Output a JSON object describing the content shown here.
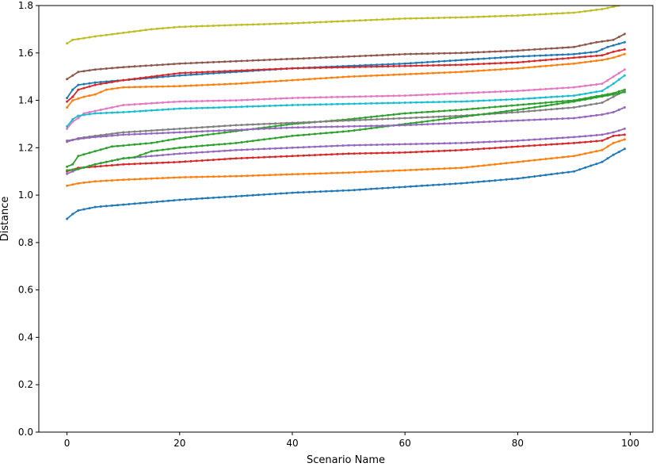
{
  "chart_data": {
    "type": "line",
    "title": "",
    "xlabel": "Scenario Name",
    "ylabel": "Distance",
    "xlim": [
      -5,
      104
    ],
    "ylim": [
      0.0,
      1.8
    ],
    "xticks": [
      0,
      20,
      40,
      60,
      80,
      100
    ],
    "xtick_labels": [
      "0",
      "20",
      "40",
      "60",
      "80",
      "100"
    ],
    "yticks": [
      0.0,
      0.2,
      0.4,
      0.6,
      0.8,
      1.0,
      1.2,
      1.4,
      1.6,
      1.8
    ],
    "ytick_labels": [
      "0.0",
      "0.2",
      "0.4",
      "0.6",
      "0.8",
      "1.0",
      "1.2",
      "1.4",
      "1.6",
      "1.8"
    ],
    "grid": false,
    "marker": "dot",
    "series": [
      {
        "color": "#1f77b4",
        "points": [
          [
            0,
            0.9
          ],
          [
            1,
            0.92
          ],
          [
            2,
            0.935
          ],
          [
            5,
            0.95
          ],
          [
            10,
            0.96
          ],
          [
            20,
            0.98
          ],
          [
            30,
            0.995
          ],
          [
            40,
            1.01
          ],
          [
            50,
            1.02
          ],
          [
            60,
            1.035
          ],
          [
            70,
            1.05
          ],
          [
            80,
            1.07
          ],
          [
            90,
            1.1
          ],
          [
            95,
            1.14
          ],
          [
            97,
            1.17
          ],
          [
            99,
            1.195
          ]
        ]
      },
      {
        "color": "#ff7f0e",
        "points": [
          [
            0,
            1.04
          ],
          [
            2,
            1.05
          ],
          [
            5,
            1.058
          ],
          [
            10,
            1.065
          ],
          [
            20,
            1.075
          ],
          [
            30,
            1.08
          ],
          [
            40,
            1.088
          ],
          [
            50,
            1.095
          ],
          [
            60,
            1.105
          ],
          [
            70,
            1.115
          ],
          [
            80,
            1.14
          ],
          [
            90,
            1.165
          ],
          [
            95,
            1.19
          ],
          [
            97,
            1.22
          ],
          [
            99,
            1.235
          ]
        ]
      },
      {
        "color": "#2ca02c",
        "points": [
          [
            0,
            1.12
          ],
          [
            1,
            1.13
          ],
          [
            2,
            1.165
          ],
          [
            5,
            1.185
          ],
          [
            8,
            1.205
          ],
          [
            15,
            1.22
          ],
          [
            20,
            1.24
          ],
          [
            30,
            1.27
          ],
          [
            40,
            1.3
          ],
          [
            50,
            1.32
          ],
          [
            60,
            1.345
          ],
          [
            70,
            1.36
          ],
          [
            80,
            1.38
          ],
          [
            90,
            1.4
          ],
          [
            97,
            1.43
          ],
          [
            99,
            1.445
          ]
        ]
      },
      {
        "color": "#d62728",
        "points": [
          [
            0,
            1.1
          ],
          [
            2,
            1.115
          ],
          [
            5,
            1.12
          ],
          [
            10,
            1.13
          ],
          [
            20,
            1.14
          ],
          [
            30,
            1.155
          ],
          [
            40,
            1.165
          ],
          [
            50,
            1.175
          ],
          [
            60,
            1.18
          ],
          [
            70,
            1.19
          ],
          [
            80,
            1.205
          ],
          [
            90,
            1.22
          ],
          [
            95,
            1.23
          ],
          [
            97,
            1.25
          ],
          [
            99,
            1.255
          ]
        ]
      },
      {
        "color": "#9467bd",
        "points": [
          [
            0,
            1.09
          ],
          [
            2,
            1.11
          ],
          [
            5,
            1.13
          ],
          [
            10,
            1.155
          ],
          [
            20,
            1.175
          ],
          [
            30,
            1.19
          ],
          [
            40,
            1.2
          ],
          [
            50,
            1.21
          ],
          [
            60,
            1.215
          ],
          [
            70,
            1.22
          ],
          [
            80,
            1.23
          ],
          [
            90,
            1.245
          ],
          [
            95,
            1.255
          ],
          [
            97,
            1.265
          ],
          [
            99,
            1.28
          ]
        ]
      },
      {
        "color": "#8c564b",
        "points": [
          [
            0,
            1.49
          ],
          [
            2,
            1.52
          ],
          [
            5,
            1.53
          ],
          [
            10,
            1.54
          ],
          [
            20,
            1.555
          ],
          [
            30,
            1.565
          ],
          [
            40,
            1.575
          ],
          [
            50,
            1.585
          ],
          [
            60,
            1.595
          ],
          [
            70,
            1.6
          ],
          [
            80,
            1.61
          ],
          [
            90,
            1.625
          ],
          [
            94,
            1.645
          ],
          [
            97,
            1.655
          ],
          [
            99,
            1.68
          ]
        ]
      },
      {
        "color": "#e377c2",
        "points": [
          [
            0,
            1.28
          ],
          [
            1,
            1.31
          ],
          [
            2,
            1.325
          ],
          [
            3,
            1.345
          ],
          [
            5,
            1.355
          ],
          [
            10,
            1.38
          ],
          [
            20,
            1.395
          ],
          [
            30,
            1.4
          ],
          [
            40,
            1.41
          ],
          [
            50,
            1.415
          ],
          [
            60,
            1.42
          ],
          [
            70,
            1.43
          ],
          [
            80,
            1.44
          ],
          [
            90,
            1.455
          ],
          [
            95,
            1.47
          ],
          [
            97,
            1.5
          ],
          [
            99,
            1.53
          ]
        ]
      },
      {
        "color": "#7f7f7f",
        "points": [
          [
            0,
            1.225
          ],
          [
            2,
            1.24
          ],
          [
            5,
            1.25
          ],
          [
            10,
            1.265
          ],
          [
            20,
            1.28
          ],
          [
            30,
            1.295
          ],
          [
            40,
            1.305
          ],
          [
            50,
            1.315
          ],
          [
            60,
            1.325
          ],
          [
            70,
            1.335
          ],
          [
            80,
            1.35
          ],
          [
            90,
            1.37
          ],
          [
            95,
            1.39
          ],
          [
            97,
            1.415
          ],
          [
            99,
            1.44
          ]
        ]
      },
      {
        "color": "#bcbd22",
        "points": [
          [
            0,
            1.64
          ],
          [
            1,
            1.655
          ],
          [
            5,
            1.67
          ],
          [
            10,
            1.685
          ],
          [
            15,
            1.7
          ],
          [
            20,
            1.71
          ],
          [
            30,
            1.718
          ],
          [
            40,
            1.725
          ],
          [
            50,
            1.735
          ],
          [
            60,
            1.745
          ],
          [
            70,
            1.75
          ],
          [
            80,
            1.758
          ],
          [
            90,
            1.77
          ],
          [
            95,
            1.785
          ],
          [
            97,
            1.795
          ],
          [
            98,
            1.8
          ]
        ]
      },
      {
        "color": "#17becf",
        "points": [
          [
            0,
            1.29
          ],
          [
            1,
            1.32
          ],
          [
            2,
            1.335
          ],
          [
            5,
            1.345
          ],
          [
            10,
            1.35
          ],
          [
            20,
            1.365
          ],
          [
            30,
            1.372
          ],
          [
            40,
            1.38
          ],
          [
            50,
            1.385
          ],
          [
            60,
            1.39
          ],
          [
            70,
            1.395
          ],
          [
            80,
            1.405
          ],
          [
            90,
            1.42
          ],
          [
            95,
            1.44
          ],
          [
            97,
            1.47
          ],
          [
            99,
            1.505
          ]
        ]
      },
      {
        "color": "#1f77b4",
        "points": [
          [
            0,
            1.41
          ],
          [
            1,
            1.445
          ],
          [
            2,
            1.465
          ],
          [
            5,
            1.475
          ],
          [
            10,
            1.485
          ],
          [
            20,
            1.505
          ],
          [
            30,
            1.52
          ],
          [
            40,
            1.535
          ],
          [
            50,
            1.545
          ],
          [
            60,
            1.555
          ],
          [
            70,
            1.57
          ],
          [
            80,
            1.585
          ],
          [
            90,
            1.595
          ],
          [
            94,
            1.605
          ],
          [
            96,
            1.625
          ],
          [
            99,
            1.645
          ]
        ]
      },
      {
        "color": "#ff7f0e",
        "points": [
          [
            0,
            1.37
          ],
          [
            1,
            1.4
          ],
          [
            3,
            1.415
          ],
          [
            5,
            1.425
          ],
          [
            7,
            1.445
          ],
          [
            10,
            1.455
          ],
          [
            20,
            1.46
          ],
          [
            30,
            1.47
          ],
          [
            40,
            1.485
          ],
          [
            50,
            1.5
          ],
          [
            60,
            1.51
          ],
          [
            70,
            1.52
          ],
          [
            80,
            1.535
          ],
          [
            90,
            1.555
          ],
          [
            95,
            1.57
          ],
          [
            97,
            1.58
          ],
          [
            99,
            1.595
          ]
        ]
      },
      {
        "color": "#2ca02c",
        "points": [
          [
            0,
            1.105
          ],
          [
            2,
            1.11
          ],
          [
            5,
            1.13
          ],
          [
            10,
            1.155
          ],
          [
            12,
            1.16
          ],
          [
            15,
            1.185
          ],
          [
            20,
            1.2
          ],
          [
            30,
            1.22
          ],
          [
            40,
            1.25
          ],
          [
            50,
            1.27
          ],
          [
            60,
            1.3
          ],
          [
            70,
            1.33
          ],
          [
            80,
            1.36
          ],
          [
            90,
            1.395
          ],
          [
            97,
            1.425
          ],
          [
            99,
            1.435
          ]
        ]
      },
      {
        "color": "#d62728",
        "points": [
          [
            0,
            1.395
          ],
          [
            1,
            1.415
          ],
          [
            2,
            1.445
          ],
          [
            5,
            1.465
          ],
          [
            10,
            1.485
          ],
          [
            20,
            1.515
          ],
          [
            30,
            1.525
          ],
          [
            40,
            1.535
          ],
          [
            50,
            1.54
          ],
          [
            60,
            1.545
          ],
          [
            70,
            1.55
          ],
          [
            80,
            1.56
          ],
          [
            90,
            1.58
          ],
          [
            95,
            1.59
          ],
          [
            97,
            1.605
          ],
          [
            99,
            1.615
          ]
        ]
      },
      {
        "color": "#9467bd",
        "points": [
          [
            0,
            1.23
          ],
          [
            3,
            1.24
          ],
          [
            5,
            1.245
          ],
          [
            10,
            1.255
          ],
          [
            20,
            1.265
          ],
          [
            30,
            1.275
          ],
          [
            40,
            1.285
          ],
          [
            50,
            1.29
          ],
          [
            60,
            1.295
          ],
          [
            70,
            1.305
          ],
          [
            80,
            1.315
          ],
          [
            90,
            1.325
          ],
          [
            95,
            1.34
          ],
          [
            97,
            1.35
          ],
          [
            99,
            1.37
          ]
        ]
      }
    ]
  }
}
